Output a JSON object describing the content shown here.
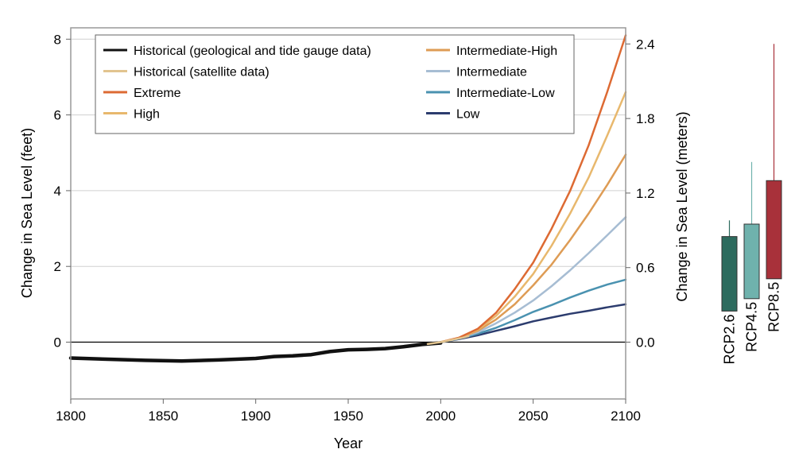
{
  "chart_data": {
    "type": "line",
    "xlabel": "Year",
    "ylabel_left": "Change in Sea Level (feet)",
    "ylabel_right": "Change in Sea Level (meters)",
    "xlim": [
      1800,
      2100
    ],
    "ylim": [
      -1.5,
      8.3
    ],
    "x_ticks": [
      1800,
      1850,
      1900,
      1950,
      2000,
      2050,
      2100
    ],
    "y_ticks_left": [
      0,
      2,
      4,
      6,
      8
    ],
    "y_ticks_right": [
      {
        "label": "0.0",
        "feet": 0
      },
      {
        "label": "0.6",
        "feet": 1.9685
      },
      {
        "label": "1.2",
        "feet": 3.937
      },
      {
        "label": "1.8",
        "feet": 5.9055
      },
      {
        "label": "2.4",
        "feet": 7.874
      }
    ],
    "grid": "horizontal",
    "legend_position": "top-center",
    "series": [
      {
        "name": "Historical (geological and tide gauge data)",
        "color": "#111111",
        "x": [
          1800,
          1820,
          1840,
          1860,
          1880,
          1900,
          1910,
          1920,
          1930,
          1940,
          1950,
          1960,
          1970,
          1980,
          1990,
          2000
        ],
        "values": [
          -0.42,
          -0.45,
          -0.48,
          -0.5,
          -0.47,
          -0.43,
          -0.38,
          -0.36,
          -0.33,
          -0.25,
          -0.2,
          -0.19,
          -0.17,
          -0.12,
          -0.06,
          -0.02
        ]
      },
      {
        "name": "Historical (satellite data)",
        "color": "#e2c48f",
        "x": [
          1993,
          1996,
          2000,
          2004,
          2008,
          2012,
          2015
        ],
        "values": [
          -0.05,
          -0.03,
          0.0,
          0.04,
          0.08,
          0.12,
          0.16
        ]
      },
      {
        "name": "Extreme",
        "color": "#dd6a33",
        "x": [
          2000,
          2010,
          2020,
          2030,
          2040,
          2050,
          2060,
          2070,
          2080,
          2090,
          2100
        ],
        "values": [
          0.0,
          0.12,
          0.35,
          0.78,
          1.4,
          2.1,
          3.0,
          4.0,
          5.2,
          6.6,
          8.1
        ]
      },
      {
        "name": "High",
        "color": "#e8b86d",
        "x": [
          2000,
          2010,
          2020,
          2030,
          2040,
          2050,
          2060,
          2070,
          2080,
          2090,
          2100
        ],
        "values": [
          0.0,
          0.12,
          0.33,
          0.7,
          1.2,
          1.8,
          2.55,
          3.4,
          4.35,
          5.45,
          6.6
        ]
      },
      {
        "name": "Intermediate-High",
        "color": "#de9c55",
        "x": [
          2000,
          2010,
          2020,
          2030,
          2040,
          2050,
          2060,
          2070,
          2080,
          2090,
          2100
        ],
        "values": [
          0.0,
          0.11,
          0.3,
          0.6,
          1.0,
          1.5,
          2.05,
          2.7,
          3.4,
          4.15,
          4.95
        ]
      },
      {
        "name": "Intermediate",
        "color": "#a7bdd3",
        "x": [
          2000,
          2010,
          2020,
          2030,
          2040,
          2050,
          2060,
          2070,
          2080,
          2090,
          2100
        ],
        "values": [
          0.0,
          0.1,
          0.26,
          0.5,
          0.78,
          1.1,
          1.48,
          1.9,
          2.35,
          2.82,
          3.3
        ]
      },
      {
        "name": "Intermediate-Low",
        "color": "#4a92b0",
        "x": [
          2000,
          2010,
          2020,
          2030,
          2040,
          2050,
          2060,
          2070,
          2080,
          2090,
          2100
        ],
        "values": [
          0.0,
          0.09,
          0.22,
          0.38,
          0.58,
          0.8,
          0.98,
          1.18,
          1.36,
          1.52,
          1.65
        ]
      },
      {
        "name": "Low",
        "color": "#2c3c6e",
        "x": [
          2000,
          2010,
          2020,
          2030,
          2040,
          2050,
          2060,
          2070,
          2080,
          2090,
          2100
        ],
        "values": [
          0.0,
          0.08,
          0.18,
          0.3,
          0.42,
          0.55,
          0.65,
          0.75,
          0.83,
          0.92,
          1.0
        ]
      }
    ],
    "rcp_boxes": [
      {
        "name": "RCP2.6",
        "color": "#2d6b5e",
        "units": "meters",
        "whisker_low": 0.25,
        "box_low": 0.25,
        "box_high": 0.85,
        "whisker_high": 0.98
      },
      {
        "name": "RCP4.5",
        "color": "#6fb2ad",
        "units": "meters",
        "whisker_low": 0.35,
        "box_low": 0.35,
        "box_high": 0.95,
        "whisker_high": 1.45
      },
      {
        "name": "RCP8.5",
        "color": "#a8313a",
        "units": "meters",
        "whisker_low": 0.51,
        "box_low": 0.51,
        "box_high": 1.3,
        "whisker_high": 2.4
      }
    ]
  }
}
